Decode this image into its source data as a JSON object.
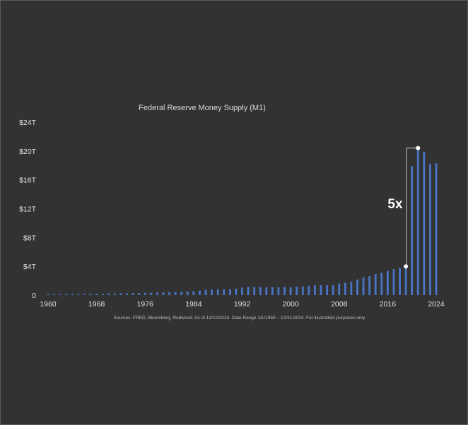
{
  "chart_data": {
    "type": "bar",
    "title": "Federal Reserve Money Supply (M1)",
    "xlabel": "",
    "ylabel": "",
    "x": [
      1960,
      1961,
      1962,
      1963,
      1964,
      1965,
      1966,
      1967,
      1968,
      1969,
      1970,
      1971,
      1972,
      1973,
      1974,
      1975,
      1976,
      1977,
      1978,
      1979,
      1980,
      1981,
      1982,
      1983,
      1984,
      1985,
      1986,
      1987,
      1988,
      1989,
      1990,
      1991,
      1992,
      1993,
      1994,
      1995,
      1996,
      1997,
      1998,
      1999,
      2000,
      2001,
      2002,
      2003,
      2004,
      2005,
      2006,
      2007,
      2008,
      2009,
      2010,
      2011,
      2012,
      2013,
      2014,
      2015,
      2016,
      2017,
      2018,
      2019,
      2020,
      2021,
      2022,
      2023,
      2024
    ],
    "values": [
      0.14,
      0.15,
      0.15,
      0.16,
      0.16,
      0.17,
      0.17,
      0.18,
      0.19,
      0.2,
      0.21,
      0.23,
      0.25,
      0.26,
      0.28,
      0.29,
      0.31,
      0.33,
      0.36,
      0.38,
      0.41,
      0.44,
      0.48,
      0.53,
      0.56,
      0.63,
      0.73,
      0.75,
      0.79,
      0.79,
      0.82,
      0.9,
      1.03,
      1.13,
      1.15,
      1.13,
      1.08,
      1.08,
      1.1,
      1.12,
      1.09,
      1.18,
      1.22,
      1.3,
      1.37,
      1.37,
      1.37,
      1.37,
      1.6,
      1.7,
      1.84,
      2.17,
      2.46,
      2.64,
      2.93,
      3.1,
      3.34,
      3.61,
      3.74,
      3.98,
      17.9,
      20.4,
      19.9,
      18.2,
      18.3
    ],
    "x_ticks": [
      "1960",
      "1968",
      "1976",
      "1984",
      "1992",
      "2000",
      "2008",
      "2016",
      "2024"
    ],
    "x_tick_values": [
      1960,
      1968,
      1976,
      1984,
      1992,
      2000,
      2008,
      2016,
      2024
    ],
    "y_ticks": [
      "0",
      "$4T",
      "$8T",
      "$12T",
      "$16T",
      "$20T",
      "$24T"
    ],
    "y_tick_values": [
      0,
      4,
      8,
      12,
      16,
      20,
      24
    ],
    "ylim": [
      0,
      24
    ],
    "xlim": [
      1960,
      2024
    ],
    "grid": false,
    "bar_color": "#4a74c4",
    "annotation": {
      "text": "5x",
      "from": {
        "x": 2019,
        "y": 3.98
      },
      "to": {
        "x": 2021,
        "y": 20.4
      }
    },
    "source_note": "Sources: FRED, Bloomberg, Redwood. As of 12/10/2024. Date Range 1/1/1960 – 10/31/2024. For illustration purposes only."
  }
}
